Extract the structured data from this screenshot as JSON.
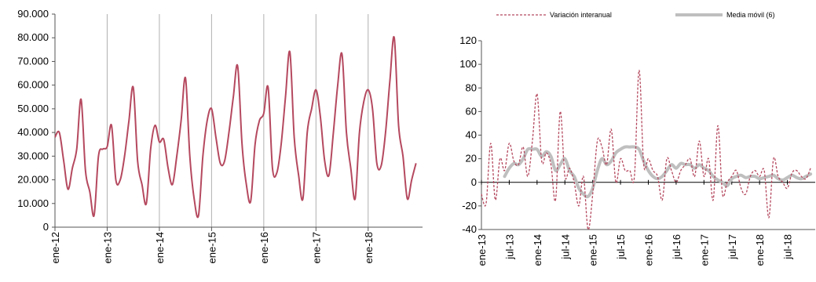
{
  "chart_data": [
    {
      "type": "line",
      "title": "",
      "xlabel": "",
      "ylabel": "",
      "ylim": [
        0,
        90000
      ],
      "yticks": [
        "0",
        "10.000",
        "20.000",
        "30.000",
        "40.000",
        "50.000",
        "60.000",
        "70.000",
        "80.000",
        "90.000"
      ],
      "xticks": [
        "ene-12",
        "ene-13",
        "ene-14",
        "ene-15",
        "ene-16",
        "ene-17",
        "ene-18"
      ],
      "grid": "vertical lines at january",
      "colors": {
        "line": "#b5495f",
        "grid": "#b0b0b0",
        "axis": "#555555"
      },
      "series": [
        {
          "x": [
            "2012-01",
            "2012-02",
            "2012-03",
            "2012-04",
            "2012-05",
            "2012-06",
            "2012-07",
            "2012-08",
            "2012-09",
            "2012-10",
            "2012-11",
            "2012-12",
            "2013-01",
            "2013-02",
            "2013-03",
            "2013-04",
            "2013-05",
            "2013-06",
            "2013-07",
            "2013-08",
            "2013-09",
            "2013-10",
            "2013-11",
            "2013-12",
            "2014-01",
            "2014-02",
            "2014-03",
            "2014-04",
            "2014-05",
            "2014-06",
            "2014-07",
            "2014-08",
            "2014-09",
            "2014-10",
            "2014-11",
            "2014-12",
            "2015-01",
            "2015-02",
            "2015-03",
            "2015-04",
            "2015-05",
            "2015-06",
            "2015-07",
            "2015-08",
            "2015-09",
            "2015-10",
            "2015-11",
            "2015-12",
            "2016-01",
            "2016-02",
            "2016-03",
            "2016-04",
            "2016-05",
            "2016-06",
            "2016-07",
            "2016-08",
            "2016-09",
            "2016-10",
            "2016-11",
            "2016-12",
            "2017-01",
            "2017-02",
            "2017-03",
            "2017-04",
            "2017-05",
            "2017-06",
            "2017-07",
            "2017-08",
            "2017-09",
            "2017-10",
            "2017-11",
            "2017-12",
            "2018-01",
            "2018-02",
            "2018-03",
            "2018-04",
            "2018-05",
            "2018-06",
            "2018-07",
            "2018-08",
            "2018-09",
            "2018-10",
            "2018-11",
            "2018-12"
          ],
          "values": [
            38000,
            40000,
            28000,
            16000,
            25000,
            33000,
            54000,
            24000,
            15000,
            5000,
            30000,
            33000,
            34000,
            43000,
            20000,
            20000,
            30000,
            45000,
            59000,
            28000,
            18000,
            10000,
            33000,
            43000,
            36000,
            37000,
            25000,
            18000,
            30000,
            45000,
            63000,
            30000,
            12000,
            5000,
            30000,
            45000,
            50000,
            38000,
            27000,
            28000,
            40000,
            55000,
            68000,
            35000,
            18000,
            11000,
            35000,
            45000,
            48000,
            59000,
            25000,
            23000,
            35000,
            55000,
            74000,
            38000,
            22000,
            12000,
            40000,
            50000,
            58000,
            47000,
            28000,
            22000,
            40000,
            60000,
            73000,
            40000,
            25000,
            12000,
            40000,
            53000,
            58000,
            50000,
            27000,
            26000,
            40000,
            62000,
            80000,
            43000,
            30000,
            12000,
            20000,
            27000
          ]
        }
      ]
    },
    {
      "type": "line",
      "title": "",
      "xlabel": "",
      "ylabel": "",
      "ylim": [
        -40,
        120
      ],
      "yticks": [
        "-40",
        "-20",
        "0",
        "20",
        "40",
        "60",
        "80",
        "100",
        "120"
      ],
      "xticks": [
        "ene-13",
        "jul-13",
        "ene-14",
        "jul-14",
        "ene-15",
        "jul-15",
        "ene-16",
        "jul-16",
        "ene-17",
        "jul-17",
        "ene-18",
        "jul-18"
      ],
      "grid": "none",
      "legend": "top",
      "colors": {
        "variation": "#b5495f",
        "ma": "#bfbfbf",
        "axis": "#555555"
      },
      "series": [
        {
          "name": "Variación interanual",
          "x": [
            "2013-01",
            "2013-02",
            "2013-03",
            "2013-04",
            "2013-05",
            "2013-06",
            "2013-07",
            "2013-08",
            "2013-09",
            "2013-10",
            "2013-11",
            "2013-12",
            "2014-01",
            "2014-02",
            "2014-03",
            "2014-04",
            "2014-05",
            "2014-06",
            "2014-07",
            "2014-08",
            "2014-09",
            "2014-10",
            "2014-11",
            "2014-12",
            "2015-01",
            "2015-02",
            "2015-03",
            "2015-04",
            "2015-05",
            "2015-06",
            "2015-07",
            "2015-08",
            "2015-09",
            "2015-10",
            "2015-11",
            "2015-12",
            "2016-01",
            "2016-02",
            "2016-03",
            "2016-04",
            "2016-05",
            "2016-06",
            "2016-07",
            "2016-08",
            "2016-09",
            "2016-10",
            "2016-11",
            "2016-12",
            "2017-01",
            "2017-02",
            "2017-03",
            "2017-04",
            "2017-05",
            "2017-06",
            "2017-07",
            "2017-08",
            "2017-09",
            "2017-10",
            "2017-11",
            "2017-12",
            "2018-01",
            "2018-02",
            "2018-03",
            "2018-04",
            "2018-05",
            "2018-06",
            "2018-07",
            "2018-08",
            "2018-09",
            "2018-10",
            "2018-11",
            "2018-12"
          ],
          "values": [
            -10,
            -18,
            33,
            -15,
            20,
            10,
            33,
            18,
            15,
            30,
            5,
            35,
            75,
            18,
            25,
            15,
            -15,
            60,
            5,
            12,
            0,
            -20,
            5,
            -40,
            -10,
            35,
            30,
            15,
            45,
            0,
            20,
            10,
            10,
            5,
            95,
            15,
            20,
            10,
            5,
            -15,
            20,
            10,
            0,
            10,
            15,
            20,
            5,
            35,
            5,
            20,
            -15,
            48,
            -10,
            0,
            5,
            10,
            -5,
            -10,
            5,
            10,
            5,
            10,
            -30,
            20,
            5,
            0,
            -5,
            8,
            10,
            5,
            3,
            12
          ]
        },
        {
          "name": "Media móvil (6)",
          "x": [
            "2013-06",
            "2013-07",
            "2013-08",
            "2013-09",
            "2013-10",
            "2013-11",
            "2013-12",
            "2014-01",
            "2014-02",
            "2014-03",
            "2014-04",
            "2014-05",
            "2014-06",
            "2014-07",
            "2014-08",
            "2014-09",
            "2014-10",
            "2014-11",
            "2014-12",
            "2015-01",
            "2015-02",
            "2015-03",
            "2015-04",
            "2015-05",
            "2015-06",
            "2015-07",
            "2015-08",
            "2015-09",
            "2015-10",
            "2015-11",
            "2015-12",
            "2016-01",
            "2016-02",
            "2016-03",
            "2016-04",
            "2016-05",
            "2016-06",
            "2016-07",
            "2016-08",
            "2016-09",
            "2016-10",
            "2016-11",
            "2016-12",
            "2017-01",
            "2017-02",
            "2017-03",
            "2017-04",
            "2017-05",
            "2017-06",
            "2017-07",
            "2017-08",
            "2017-09",
            "2017-10",
            "2017-11",
            "2017-12",
            "2018-01",
            "2018-02",
            "2018-03",
            "2018-04",
            "2018-05",
            "2018-06",
            "2018-07",
            "2018-08",
            "2018-09",
            "2018-10",
            "2018-11",
            "2018-12"
          ],
          "values": [
            5,
            12,
            16,
            15,
            20,
            28,
            28,
            28,
            22,
            26,
            22,
            10,
            15,
            20,
            10,
            5,
            -5,
            -10,
            -12,
            -5,
            10,
            20,
            15,
            18,
            25,
            28,
            30,
            30,
            30,
            28,
            18,
            10,
            5,
            3,
            5,
            10,
            15,
            12,
            16,
            15,
            15,
            12,
            15,
            12,
            10,
            5,
            2,
            0,
            -3,
            3,
            5,
            6,
            4,
            5,
            5,
            3,
            4,
            5,
            6,
            3,
            2,
            4,
            6,
            4,
            3,
            5,
            7
          ]
        }
      ]
    }
  ]
}
